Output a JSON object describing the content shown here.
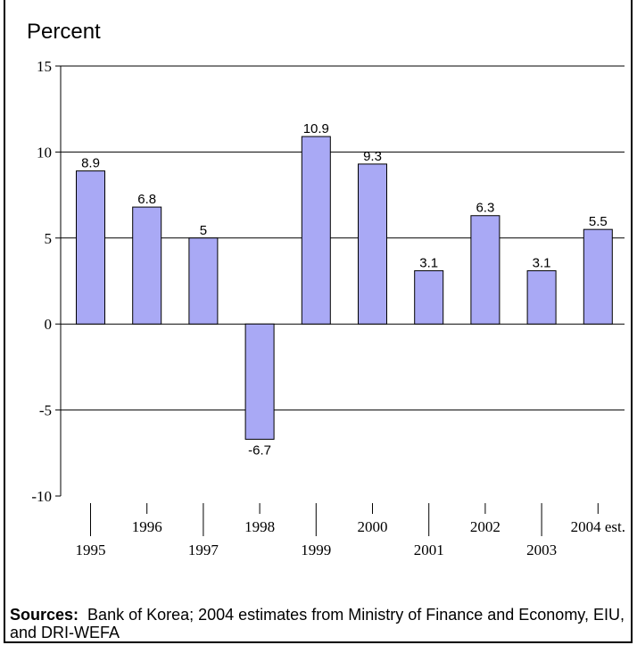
{
  "chart_data": {
    "type": "bar",
    "ylabel": "Percent",
    "ylim": [
      -10,
      15
    ],
    "yticks": [
      "15",
      "10",
      "5",
      "0",
      "-5",
      "-10"
    ],
    "categories": [
      "1995",
      "1996",
      "1997",
      "1998",
      "1999",
      "2000",
      "2001",
      "2002",
      "2003",
      "2004 est."
    ],
    "values": [
      8.9,
      6.8,
      5,
      -6.7,
      10.9,
      9.3,
      3.1,
      6.3,
      3.1,
      5.5
    ],
    "value_labels": [
      "8.9",
      "6.8",
      "5",
      "-6.7",
      "10.9",
      "9.3",
      "3.1",
      "6.3",
      "3.1",
      "5.5"
    ],
    "bar_color": "#a9a9f5",
    "grid": true
  },
  "sources": {
    "label": "Sources:",
    "text": "Bank of Korea; 2004 estimates from Ministry of Finance and Economy, EIU, and DRI-WEFA"
  }
}
